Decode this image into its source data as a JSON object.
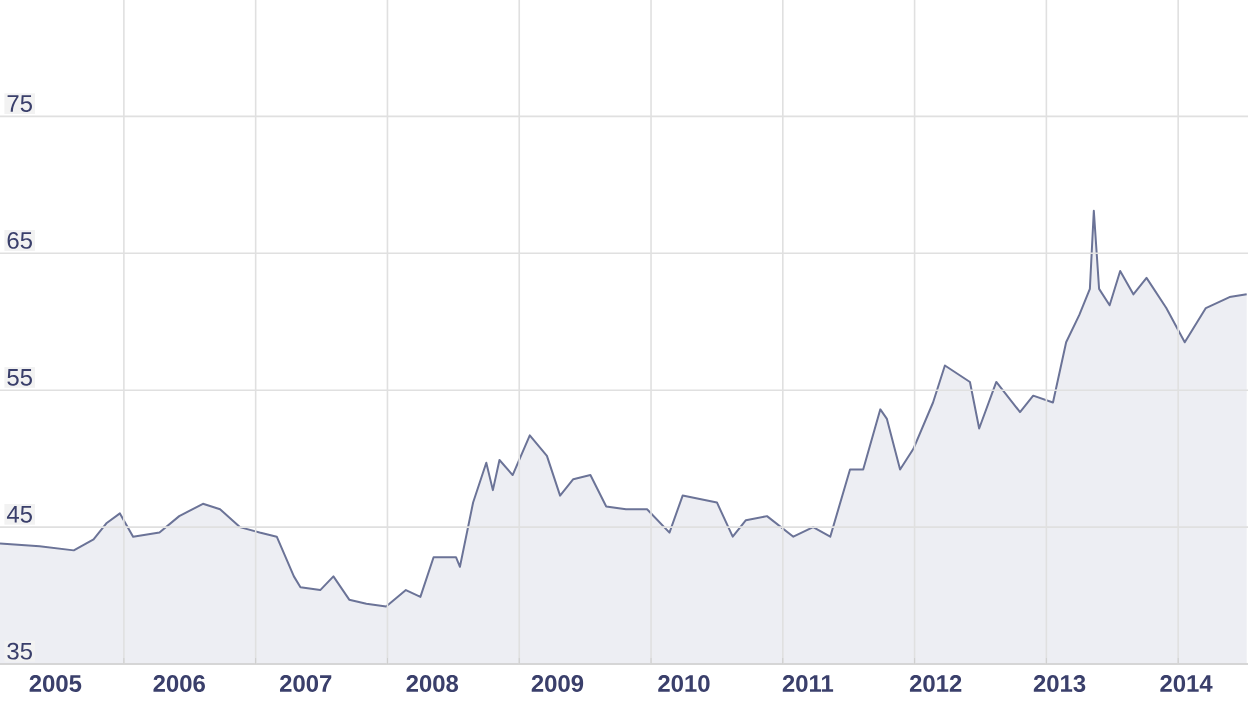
{
  "chart_data": {
    "type": "area",
    "grid": true,
    "xlim": [
      2005.06,
      2014.53
    ],
    "ylim": [
      35,
      83.5
    ],
    "xticks": [
      {
        "value": 2005.48,
        "label": "2005"
      },
      {
        "value": 2006,
        "label": null
      },
      {
        "value": 2006.42,
        "label": "2006"
      },
      {
        "value": 2007,
        "label": null
      },
      {
        "value": 2007.38,
        "label": "2007"
      },
      {
        "value": 2008,
        "label": null
      },
      {
        "value": 2008.34,
        "label": "2008"
      },
      {
        "value": 2009,
        "label": null
      },
      {
        "value": 2009.29,
        "label": "2009"
      },
      {
        "value": 2010,
        "label": null
      },
      {
        "value": 2010.25,
        "label": "2010"
      },
      {
        "value": 2011,
        "label": null
      },
      {
        "value": 2011.19,
        "label": "2011"
      },
      {
        "value": 2012,
        "label": null
      },
      {
        "value": 2012.16,
        "label": "2012"
      },
      {
        "value": 2013,
        "label": null
      },
      {
        "value": 2013.1,
        "label": "2013"
      },
      {
        "value": 2014,
        "label": null
      },
      {
        "value": 2014.06,
        "label": "2014"
      }
    ],
    "yticks": [
      35,
      45,
      55,
      65,
      75
    ],
    "series": [
      {
        "color": "#6b7397",
        "x": [
          2005.06,
          2005.36,
          2005.62,
          2005.77,
          2005.87,
          2005.97,
          2006.07,
          2006.27,
          2006.42,
          2006.6,
          2006.73,
          2006.88,
          2007.03,
          2007.16,
          2007.29,
          2007.34,
          2007.49,
          2007.59,
          2007.71,
          2007.84,
          2007.99,
          2008.14,
          2008.25,
          2008.35,
          2008.52,
          2008.55,
          2008.65,
          2008.75,
          2008.8,
          2008.85,
          2008.95,
          2009.08,
          2009.21,
          2009.31,
          2009.41,
          2009.54,
          2009.66,
          2009.81,
          2009.97,
          2010.14,
          2010.24,
          2010.5,
          2010.62,
          2010.72,
          2010.88,
          2011.08,
          2011.23,
          2011.36,
          2011.51,
          2011.61,
          2011.74,
          2011.79,
          2011.89,
          2011.99,
          2012.14,
          2012.23,
          2012.42,
          2012.49,
          2012.62,
          2012.8,
          2012.9,
          2013.05,
          2013.15,
          2013.25,
          2013.33,
          2013.36,
          2013.4,
          2013.48,
          2013.56,
          2013.66,
          2013.76,
          2013.91,
          2014.05,
          2014.21,
          2014.39,
          2014.52
        ],
        "values": [
          43.8,
          43.6,
          43.3,
          44.1,
          45.3,
          46.0,
          44.3,
          44.6,
          45.8,
          46.7,
          46.3,
          45.0,
          44.6,
          44.3,
          41.4,
          40.6,
          40.4,
          41.4,
          39.7,
          39.4,
          39.2,
          40.4,
          39.9,
          42.8,
          42.8,
          42.1,
          46.8,
          49.7,
          47.7,
          49.9,
          48.8,
          51.7,
          50.2,
          47.3,
          48.5,
          48.8,
          46.5,
          46.3,
          46.3,
          44.6,
          47.3,
          46.8,
          44.3,
          45.5,
          45.8,
          44.3,
          45.0,
          44.3,
          49.2,
          49.2,
          53.6,
          52.9,
          49.2,
          50.7,
          54.1,
          56.8,
          55.6,
          52.2,
          55.6,
          53.4,
          54.6,
          54.1,
          58.5,
          60.5,
          62.4,
          68.1,
          62.4,
          61.2,
          63.7,
          62.0,
          63.2,
          61.0,
          58.5,
          61.0,
          61.8,
          62.0
        ]
      }
    ]
  }
}
